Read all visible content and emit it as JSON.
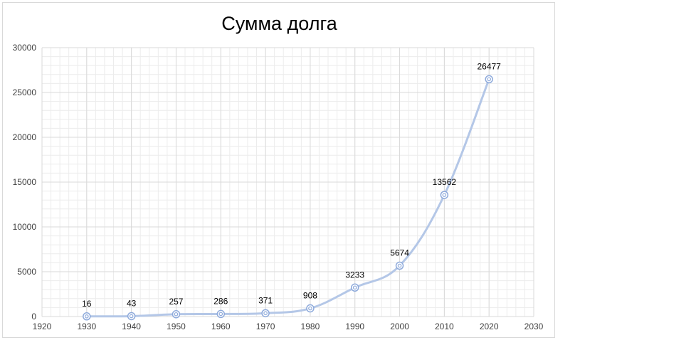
{
  "chart_data": {
    "type": "scatter",
    "title": "Сумма долга",
    "xlabel": "",
    "ylabel": "",
    "xlim": [
      1920,
      2030
    ],
    "ylim": [
      0,
      30000
    ],
    "x_ticks": [
      1920,
      1930,
      1940,
      1950,
      1960,
      1970,
      1980,
      1990,
      2000,
      2010,
      2020,
      2030
    ],
    "y_ticks": [
      0,
      5000,
      10000,
      15000,
      20000,
      25000,
      30000
    ],
    "grid": true,
    "minor_grid": true,
    "legend": "none",
    "series": [
      {
        "x": [
          1930,
          1940,
          1950,
          1960,
          1970,
          1980,
          1990,
          2000,
          2010,
          2020
        ],
        "values": [
          16,
          43,
          257,
          286,
          371,
          908,
          3233,
          5674,
          13562,
          26477
        ],
        "data_labels": [
          "16",
          "43",
          "257",
          "286",
          "371",
          "908",
          "3233",
          "5674",
          "13562",
          "26477"
        ],
        "line": "smooth",
        "color": "#b4c7e7",
        "marker_color": "#8eaadb"
      }
    ],
    "colors": {
      "major_grid": "#d9d9d9",
      "minor_grid": "#ececec",
      "line": "#b4c7e7",
      "marker": "#8eaadb"
    }
  }
}
